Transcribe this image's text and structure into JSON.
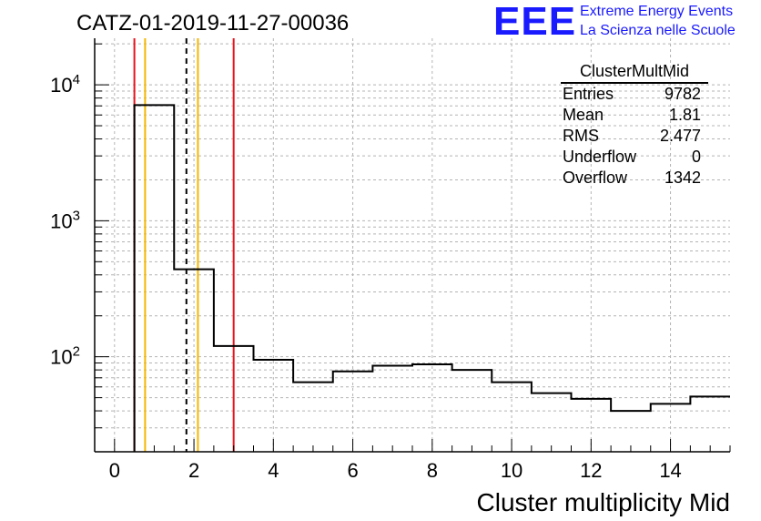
{
  "header": {
    "title": "CATZ-01-2019-11-27-00036",
    "logo_text": "EEE",
    "tagline_1": "Extreme Energy Events",
    "tagline_2": "La Scienza nelle Scuole"
  },
  "stats_box": {
    "name": "ClusterMultMid",
    "rows": [
      {
        "label": "Entries",
        "value": "9782"
      },
      {
        "label": "Mean",
        "value": "1.81"
      },
      {
        "label": "RMS",
        "value": "2.477"
      },
      {
        "label": "Underflow",
        "value": "0"
      },
      {
        "label": "Overflow",
        "value": "1342"
      }
    ]
  },
  "colors": {
    "logo": "#1a1aff",
    "histogram": "#000000",
    "red_line": "#e8141e",
    "yellow_line": "#f5b800",
    "grid": "#b4b4b4"
  },
  "chart_data": {
    "type": "histogram",
    "xlabel": "Cluster multiplicity Mid",
    "ylabel": "",
    "xlim": [
      -0.5,
      15.5
    ],
    "ylim": [
      20,
      22000
    ],
    "log_y": true,
    "grid": true,
    "x_ticks": [
      0,
      2,
      4,
      6,
      8,
      10,
      12,
      14
    ],
    "y_ticks": [
      {
        "value": 100,
        "base": "10",
        "exp": "2"
      },
      {
        "value": 1000,
        "base": "10",
        "exp": "3"
      },
      {
        "value": 10000,
        "base": "10",
        "exp": "4"
      }
    ],
    "bins": [
      {
        "x0": 0.5,
        "x1": 1.5,
        "value": 7100
      },
      {
        "x0": 1.5,
        "x1": 2.5,
        "value": 440
      },
      {
        "x0": 2.5,
        "x1": 3.5,
        "value": 120
      },
      {
        "x0": 3.5,
        "x1": 4.5,
        "value": 95
      },
      {
        "x0": 4.5,
        "x1": 5.5,
        "value": 65
      },
      {
        "x0": 5.5,
        "x1": 6.5,
        "value": 78
      },
      {
        "x0": 6.5,
        "x1": 7.5,
        "value": 86
      },
      {
        "x0": 7.5,
        "x1": 8.5,
        "value": 88
      },
      {
        "x0": 8.5,
        "x1": 9.5,
        "value": 80
      },
      {
        "x0": 9.5,
        "x1": 10.5,
        "value": 65
      },
      {
        "x0": 10.5,
        "x1": 11.5,
        "value": 54
      },
      {
        "x0": 11.5,
        "x1": 12.5,
        "value": 49
      },
      {
        "x0": 12.5,
        "x1": 13.5,
        "value": 40
      },
      {
        "x0": 13.5,
        "x1": 14.5,
        "value": 45
      },
      {
        "x0": 14.5,
        "x1": 15.5,
        "value": 51
      }
    ],
    "vertical_lines": [
      {
        "x": 0.5,
        "color": "red",
        "style": "solid"
      },
      {
        "x": 0.77,
        "color": "yellow",
        "style": "solid"
      },
      {
        "x": 1.81,
        "color": "black",
        "style": "dashed"
      },
      {
        "x": 2.1,
        "color": "yellow",
        "style": "solid"
      },
      {
        "x": 3.0,
        "color": "red",
        "style": "solid"
      }
    ]
  }
}
